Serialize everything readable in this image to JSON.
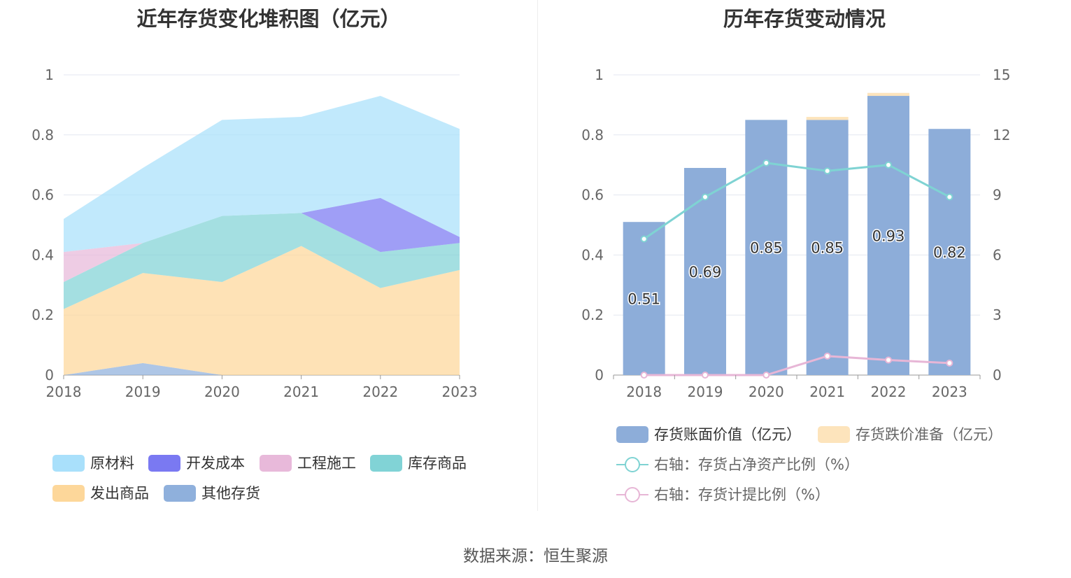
{
  "source": "数据来源：恒生聚源",
  "chart_data": [
    {
      "type": "area",
      "title": "近年存货变化堆积图（亿元）",
      "x": [
        "2018",
        "2019",
        "2020",
        "2021",
        "2022",
        "2023"
      ],
      "y_ticks": [
        "0",
        "0.2",
        "0.4",
        "0.6",
        "0.8",
        "1"
      ],
      "ylim": [
        0,
        1
      ],
      "stacked": true,
      "legend_position": "bottom",
      "series": [
        {
          "name": "其他存货",
          "values": [
            0.0,
            0.04,
            0.0,
            0.0,
            0.0,
            0.0
          ],
          "color": "#8fb0dc"
        },
        {
          "name": "发出商品",
          "values": [
            0.22,
            0.3,
            0.31,
            0.43,
            0.29,
            0.35
          ],
          "color": "#fdd79a"
        },
        {
          "name": "库存商品",
          "values": [
            0.09,
            0.1,
            0.22,
            0.11,
            0.12,
            0.09
          ],
          "color": "#81d3d6"
        },
        {
          "name": "工程施工",
          "values": [
            0.1,
            0.0,
            0.0,
            0.0,
            0.0,
            0.0
          ],
          "color": "#e8b9da"
        },
        {
          "name": "开发成本",
          "values": [
            0.0,
            0.0,
            0.0,
            0.0,
            0.18,
            0.02
          ],
          "color": "#7a79f2"
        },
        {
          "name": "原材料",
          "values": [
            0.11,
            0.25,
            0.32,
            0.32,
            0.34,
            0.36
          ],
          "color": "#a9e0fb"
        }
      ],
      "legend_order": [
        "原材料",
        "开发成本",
        "工程施工",
        "库存商品",
        "发出商品",
        "其他存货"
      ]
    },
    {
      "type": "bar",
      "title": "历年存货变动情况",
      "categories": [
        "2018",
        "2019",
        "2020",
        "2021",
        "2022",
        "2023"
      ],
      "y_ticks": [
        "0",
        "0.2",
        "0.4",
        "0.6",
        "0.8",
        "1"
      ],
      "ylim": [
        0,
        1
      ],
      "y2_ticks": [
        "0",
        "3",
        "6",
        "9",
        "12",
        "15"
      ],
      "y2lim": [
        0,
        15
      ],
      "legend_position": "bottom",
      "series": [
        {
          "name": "存货账面价值（亿元）",
          "type": "bar",
          "stack": "inv",
          "color": "#8dadd9",
          "values": [
            0.51,
            0.69,
            0.85,
            0.85,
            0.93,
            0.82
          ],
          "labels": [
            "0.51",
            "0.69",
            "0.85",
            "0.85",
            "0.93",
            "0.82"
          ]
        },
        {
          "name": "存货跌价准备（亿元）",
          "type": "bar",
          "stack": "inv",
          "color": "#fde4bc",
          "values": [
            0.0,
            0.0,
            0.0,
            0.01,
            0.01,
            0.0
          ]
        },
        {
          "name": "右轴：存货占净资产比例（%）",
          "type": "line",
          "axis": "right",
          "color": "#7fd3d3",
          "values": [
            6.8,
            8.9,
            10.6,
            10.2,
            10.5,
            8.9
          ]
        },
        {
          "name": "右轴：存货计提比例（%）",
          "type": "line",
          "axis": "right",
          "color": "#e7b6d6",
          "values": [
            0.0,
            0.0,
            0.0,
            0.95,
            0.75,
            0.6
          ]
        }
      ]
    }
  ]
}
